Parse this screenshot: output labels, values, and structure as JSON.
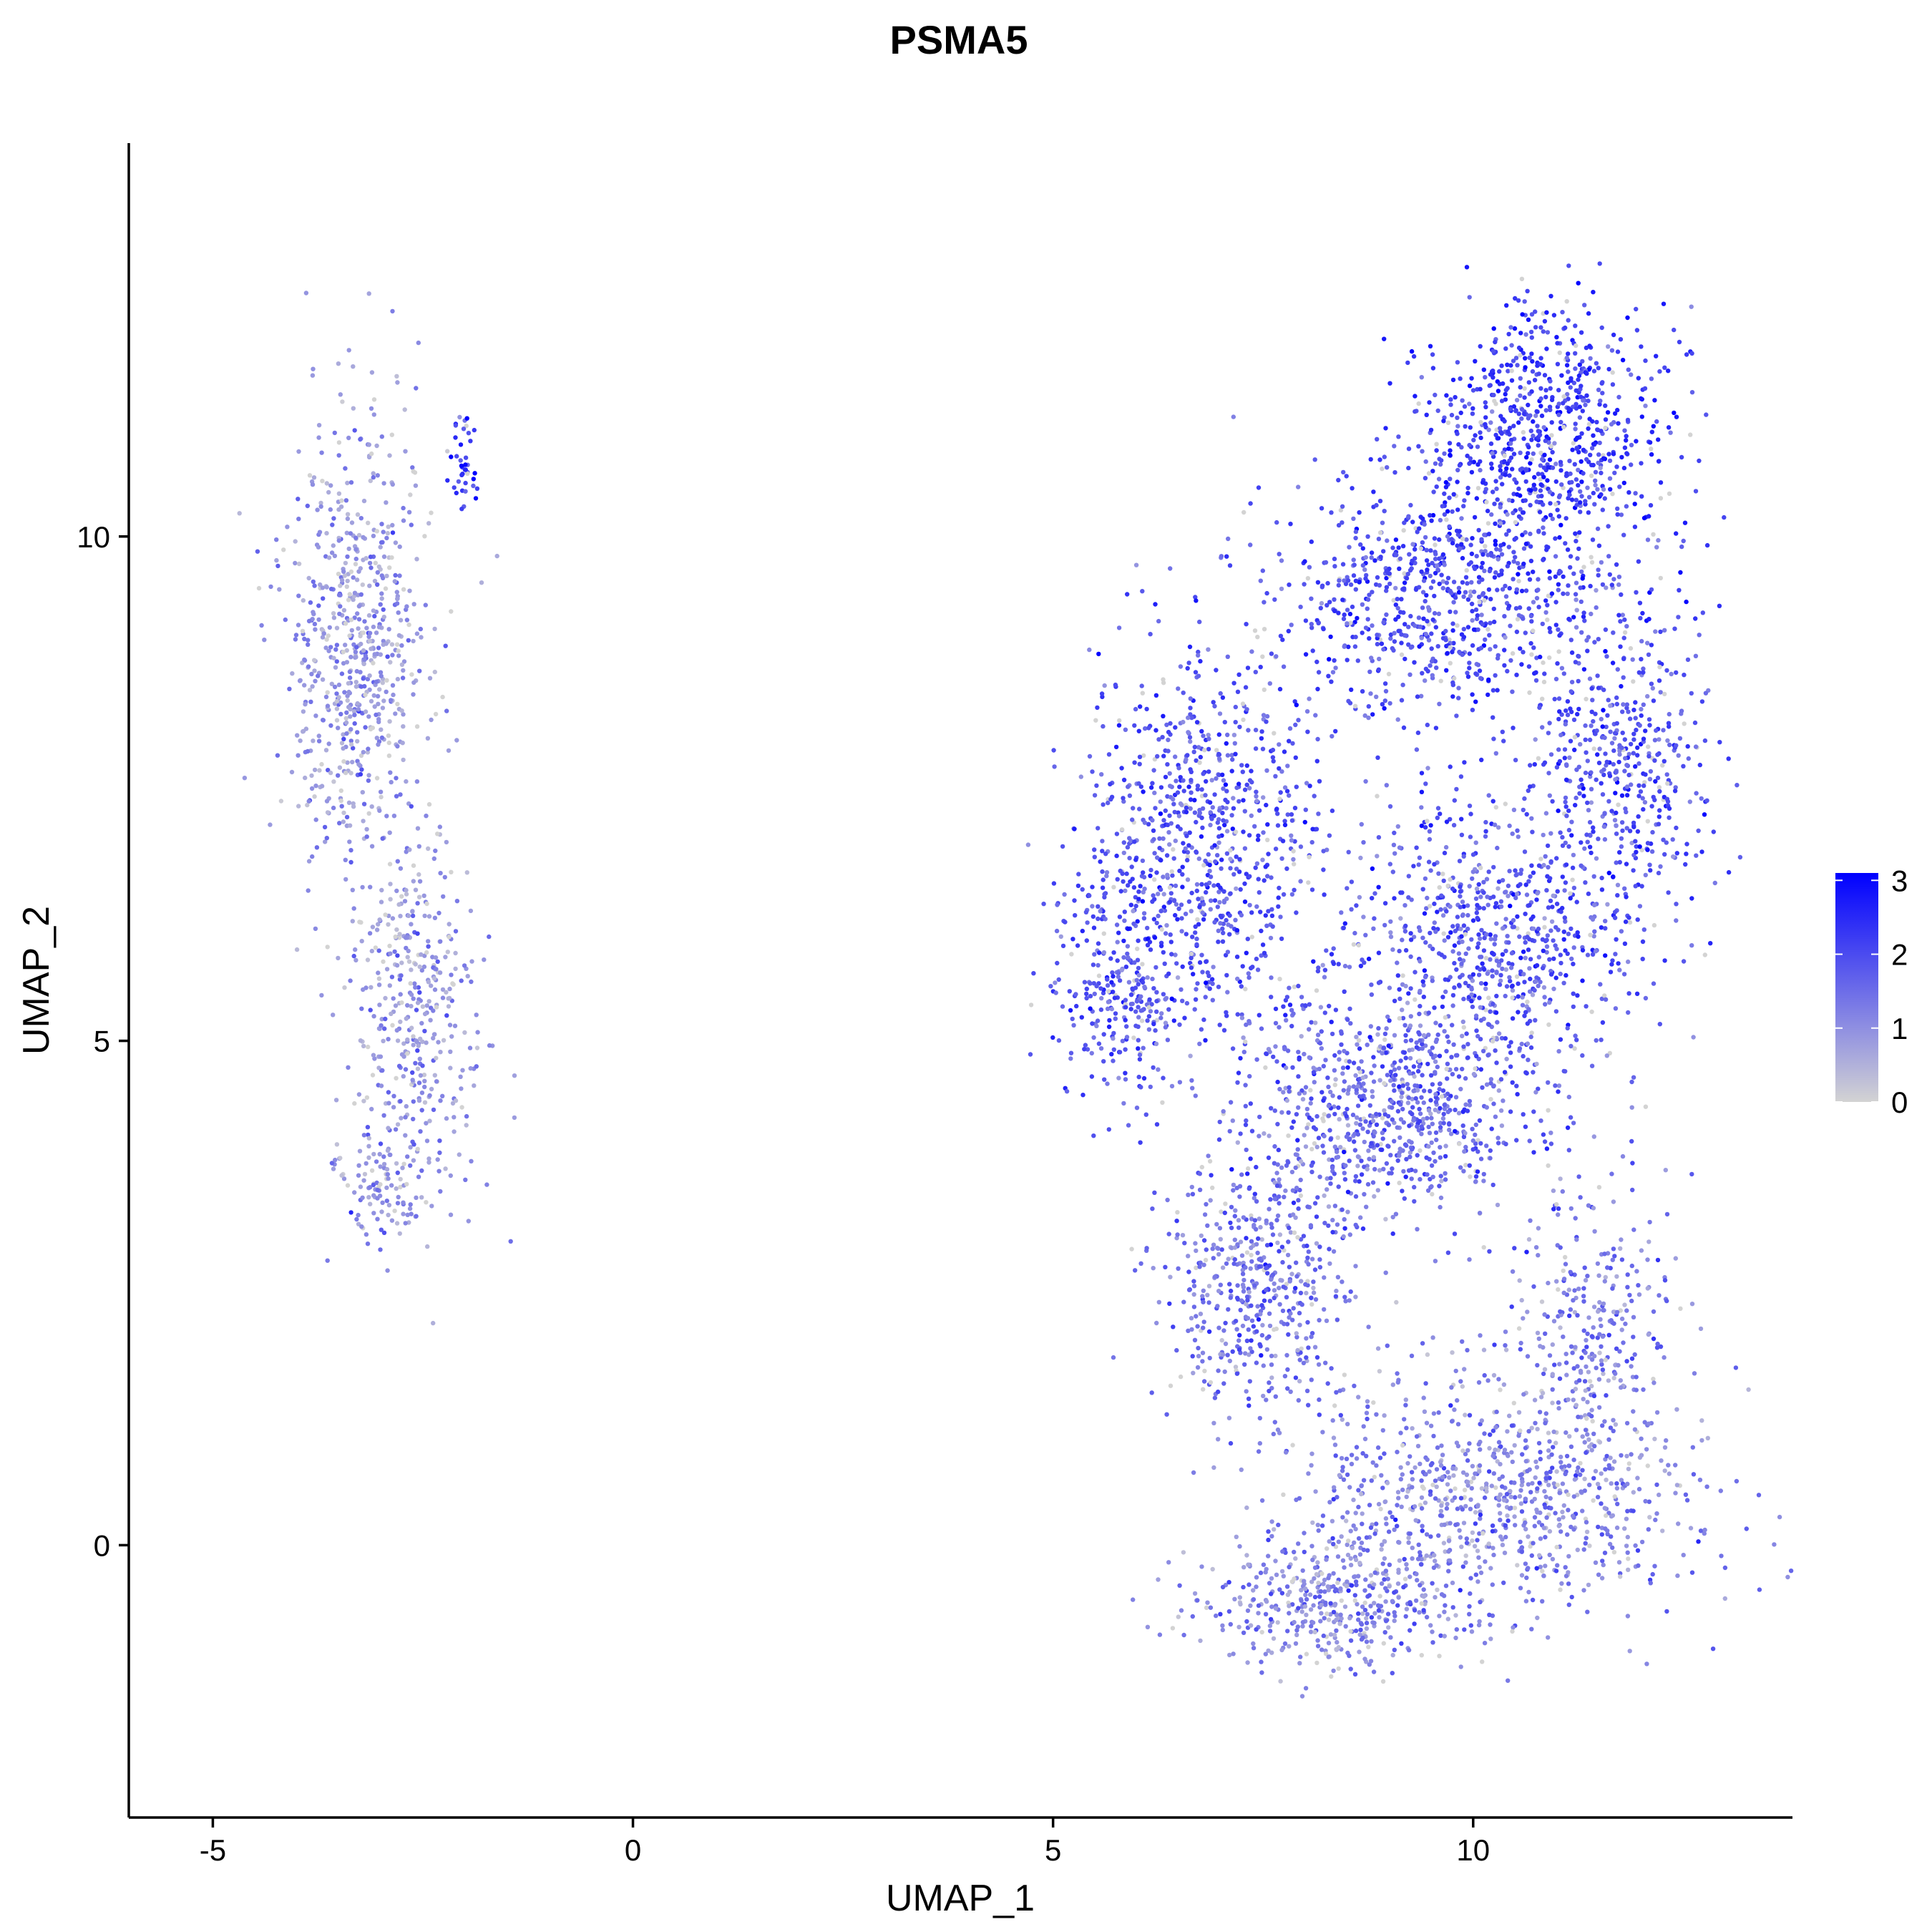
{
  "chart_data": {
    "type": "scatter",
    "title": "PSMA5",
    "xlabel": "UMAP_1",
    "ylabel": "UMAP_2",
    "xlim": [
      -6,
      13.8
    ],
    "ylim": [
      -2.7,
      13.9
    ],
    "xticks": [
      -5,
      0,
      5,
      10
    ],
    "yticks": [
      0,
      5,
      10
    ],
    "grid": false,
    "color_scale": {
      "low_color": "#d3d3d3",
      "high_color": "#0000ff",
      "min": 0,
      "max": 3.1,
      "ticks": [
        0,
        1,
        2,
        3
      ],
      "legend_position": "right"
    },
    "clusters": [
      {
        "cx": -3.3,
        "cy": 8.9,
        "sx": 0.55,
        "sy": 1.4,
        "n": 700,
        "mean_expr": 0.9
      },
      {
        "cx": -2.6,
        "cy": 5.2,
        "sx": 0.45,
        "sy": 1.2,
        "n": 420,
        "mean_expr": 0.95
      },
      {
        "cx": -3.0,
        "cy": 3.6,
        "sx": 0.35,
        "sy": 0.35,
        "n": 90,
        "mean_expr": 0.9
      },
      {
        "cx": -2.0,
        "cy": 10.7,
        "sx": 0.12,
        "sy": 0.25,
        "n": 40,
        "mean_expr": 2.2
      },
      {
        "cx": 10.8,
        "cy": 11.0,
        "sx": 0.9,
        "sy": 0.75,
        "n": 800,
        "mean_expr": 2.2
      },
      {
        "cx": 9.6,
        "cy": 9.4,
        "sx": 1.3,
        "sy": 0.7,
        "n": 800,
        "mean_expr": 2.0
      },
      {
        "cx": 6.8,
        "cy": 7.0,
        "sx": 0.9,
        "sy": 1.2,
        "n": 800,
        "mean_expr": 1.9
      },
      {
        "cx": 5.8,
        "cy": 5.6,
        "sx": 0.5,
        "sy": 0.8,
        "n": 300,
        "mean_expr": 1.8
      },
      {
        "cx": 11.8,
        "cy": 7.8,
        "sx": 0.6,
        "sy": 0.9,
        "n": 450,
        "mean_expr": 1.9
      },
      {
        "cx": 10.2,
        "cy": 6.0,
        "sx": 1.1,
        "sy": 0.9,
        "n": 800,
        "mean_expr": 1.8
      },
      {
        "cx": 8.9,
        "cy": 4.3,
        "sx": 1.1,
        "sy": 0.7,
        "n": 800,
        "mean_expr": 1.6
      },
      {
        "cx": 7.4,
        "cy": 2.6,
        "sx": 0.7,
        "sy": 0.8,
        "n": 500,
        "mean_expr": 1.4
      },
      {
        "cx": 10.3,
        "cy": 0.5,
        "sx": 1.5,
        "sy": 0.75,
        "n": 900,
        "mean_expr": 1.2
      },
      {
        "cx": 8.3,
        "cy": -0.6,
        "sx": 1.0,
        "sy": 0.4,
        "n": 450,
        "mean_expr": 1.2
      },
      {
        "cx": 11.4,
        "cy": 2.2,
        "sx": 0.6,
        "sy": 0.9,
        "n": 300,
        "mean_expr": 1.3
      }
    ]
  }
}
